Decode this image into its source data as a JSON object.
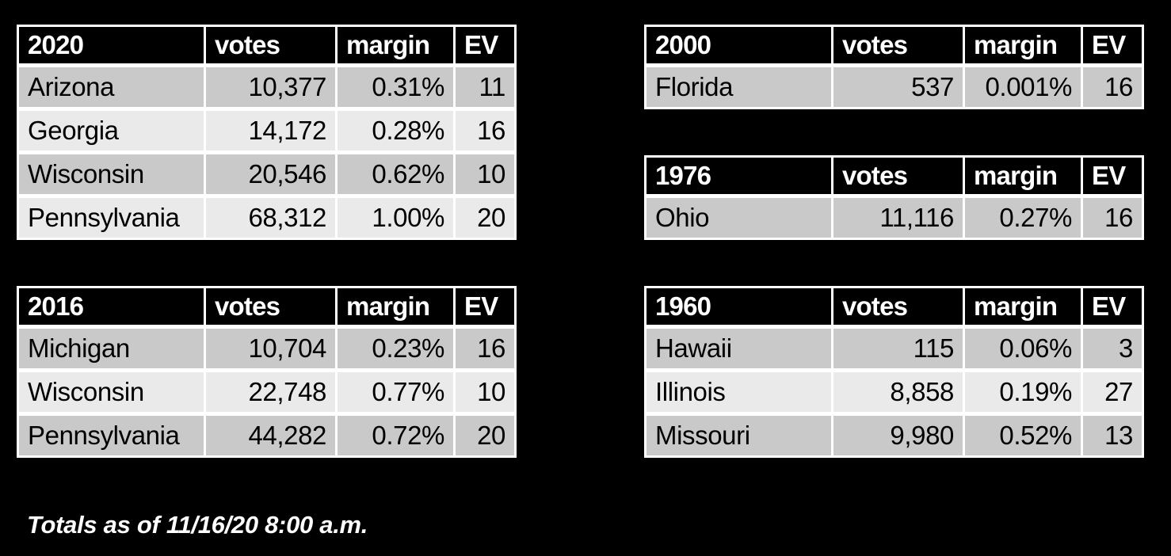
{
  "slide": {
    "background_color": "#000000",
    "footer_note": "Totals as of 11/16/20 8:00 a.m."
  },
  "colors": {
    "table_border": "#ffffff",
    "header_background": "#000000",
    "header_text": "#ffffff",
    "row_band_dark": "#c9c9c9",
    "row_band_light": "#eaeaea",
    "data_text": "#000000"
  },
  "chart_data": [
    {
      "type": "table",
      "title": "2020",
      "columns": [
        "2020",
        "votes",
        "margin",
        "EV"
      ],
      "rows": [
        [
          "Arizona",
          "10,377",
          "0.31%",
          "11"
        ],
        [
          "Georgia",
          "14,172",
          "0.28%",
          "16"
        ],
        [
          "Wisconsin",
          "20,546",
          "0.62%",
          "10"
        ],
        [
          "Pennsylvania",
          "68,312",
          "1.00%",
          "20"
        ]
      ]
    },
    {
      "type": "table",
      "title": "2016",
      "columns": [
        "2016",
        "votes",
        "margin",
        "EV"
      ],
      "rows": [
        [
          "Michigan",
          "10,704",
          "0.23%",
          "16"
        ],
        [
          "Wisconsin",
          "22,748",
          "0.77%",
          "10"
        ],
        [
          "Pennsylvania",
          "44,282",
          "0.72%",
          "20"
        ]
      ]
    },
    {
      "type": "table",
      "title": "2000",
      "columns": [
        "2000",
        "votes",
        "margin",
        "EV"
      ],
      "rows": [
        [
          "Florida",
          "537",
          "0.001%",
          "16"
        ]
      ]
    },
    {
      "type": "table",
      "title": "1976",
      "columns": [
        "1976",
        "votes",
        "margin",
        "EV"
      ],
      "rows": [
        [
          "Ohio",
          "11,116",
          "0.27%",
          "16"
        ]
      ]
    },
    {
      "type": "table",
      "title": "1960",
      "columns": [
        "1960",
        "votes",
        "margin",
        "EV"
      ],
      "rows": [
        [
          "Hawaii",
          "115",
          "0.06%",
          "3"
        ],
        [
          "Illinois",
          "8,858",
          "0.19%",
          "27"
        ],
        [
          "Missouri",
          "9,980",
          "0.52%",
          "13"
        ]
      ]
    }
  ]
}
